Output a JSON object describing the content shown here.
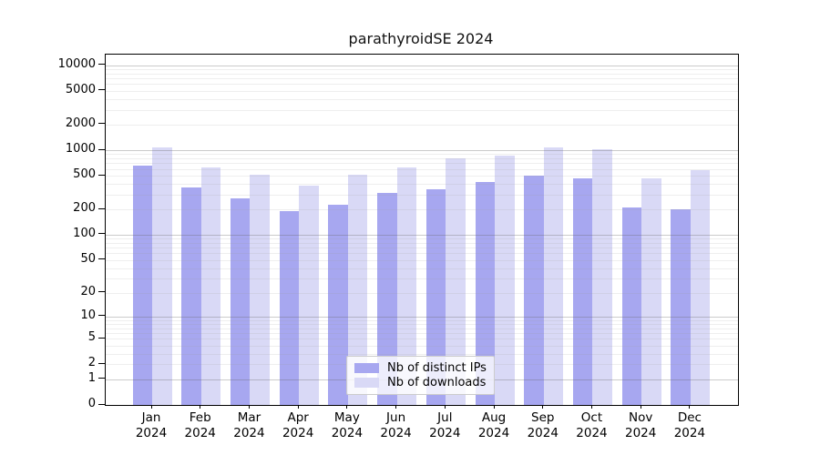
{
  "chart_data": {
    "type": "bar",
    "title": "parathyroidSE 2024",
    "categories": [
      "Jan",
      "Feb",
      "Mar",
      "Apr",
      "May",
      "Jun",
      "Jul",
      "Aug",
      "Sep",
      "Oct",
      "Nov",
      "Dec"
    ],
    "category_year": "2024",
    "series": [
      {
        "name": "Nb of distinct IPs",
        "color": "#a7a7f0",
        "values": [
          660,
          360,
          270,
          190,
          225,
          310,
          350,
          420,
          500,
          465,
          210,
          200
        ]
      },
      {
        "name": "Nb of downloads",
        "color": "#d9d9f6",
        "values": [
          1090,
          620,
          520,
          385,
          520,
          630,
          810,
          870,
          1080,
          1020,
          470,
          580
        ]
      }
    ],
    "xlabel": "",
    "ylabel": "",
    "yscale": "log1p",
    "ylim": [
      0,
      13000
    ],
    "y_ticks": [
      10000,
      5000,
      2000,
      1000,
      500,
      200,
      100,
      50,
      20,
      10,
      5,
      2,
      1,
      0
    ],
    "grid": "on",
    "legend_position": "bottom-center-inside",
    "frame_color": "#000000",
    "gridline_major_color": "#c9c9c9",
    "gridline_minor_color": "#e9e9e9"
  }
}
